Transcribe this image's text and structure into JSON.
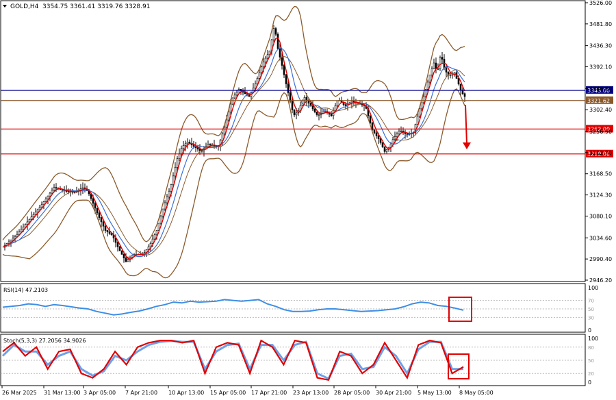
{
  "header": {
    "symbol": "GOLD,H4",
    "ohlc": "3354.75 3361.41 3319.76 3328.91"
  },
  "colors": {
    "candle": "#000000",
    "bollinger": "#8b5a2b",
    "ma_fast": "#e00000",
    "ma_slow": "#3b6fd8",
    "hline_blue": "#00008b",
    "hline_red": "#e00000",
    "hline_brown": "#8b5a2b",
    "rsi": "#3d8ee6",
    "stoch_main": "#e00000",
    "stoch_signal": "#6fa0e8",
    "annotation": "#e00000"
  },
  "chart_data": [
    {
      "type": "line",
      "name": "price",
      "ylim": [
        2946.2,
        3526.0
      ],
      "yticks": [
        "3526.00",
        "3481.80",
        "3436.30",
        "3392.10",
        "3346.60",
        "3302.40",
        "3256.90",
        "3212.70",
        "3168.50",
        "3124.30",
        "3080.10",
        "3034.60",
        "2990.40",
        "2946.20"
      ],
      "xticks": [
        "26 Mar 2025",
        "31 Mar 13:00",
        "3 Apr 05:00",
        "7 Apr 21:00",
        "10 Apr 13:00",
        "15 Apr 05:00",
        "17 Apr 21:00",
        "23 Apr 13:00",
        "28 Apr 05:00",
        "30 Apr 21:00",
        "5 May 13:00",
        "8 May 05:00"
      ],
      "price_x": [
        0,
        20,
        40,
        55,
        75,
        90,
        105,
        118,
        125,
        140,
        150,
        160,
        170,
        180,
        190,
        205,
        215,
        225,
        235,
        245,
        255,
        262,
        270,
        280,
        290,
        300,
        315,
        325,
        335,
        345,
        360,
        370,
        380,
        390,
        397,
        402,
        408,
        415,
        425,
        432,
        440,
        450,
        460,
        470,
        480,
        490,
        500,
        510,
        520,
        530,
        540,
        550,
        558,
        565,
        570,
        580,
        590,
        600,
        608,
        615,
        620,
        625,
        630,
        635,
        640,
        645,
        650,
        655,
        660,
        665,
        670,
        675,
        677
      ],
      "price_y": [
        3015,
        3040,
        3075,
        3100,
        3140,
        3133,
        3130,
        3140,
        3130,
        3080,
        3050,
        3040,
        3010,
        2985,
        3000,
        3000,
        3020,
        3050,
        3100,
        3140,
        3200,
        3225,
        3235,
        3225,
        3215,
        3230,
        3225,
        3270,
        3325,
        3345,
        3330,
        3360,
        3400,
        3425,
        3480,
        3430,
        3395,
        3350,
        3290,
        3300,
        3330,
        3310,
        3290,
        3300,
        3290,
        3325,
        3310,
        3320,
        3315,
        3310,
        3260,
        3240,
        3215,
        3225,
        3240,
        3260,
        3250,
        3255,
        3300,
        3330,
        3355,
        3380,
        3400,
        3380,
        3420,
        3390,
        3375,
        3375,
        3380,
        3360,
        3340,
        3330,
        3329
      ],
      "annotations": [
        {
          "value": 3343.0,
          "label": "3343.00",
          "color": "hline_blue"
        },
        {
          "value": 3321.62,
          "label": "3321.62",
          "color": "hline_brown"
        },
        {
          "value": 3262.0,
          "label": "3262.00",
          "color": "hline_red"
        },
        {
          "value": 3210.0,
          "label": "3210.00",
          "color": "hline_red"
        }
      ]
    },
    {
      "type": "line",
      "name": "RSI(14)",
      "label": "RSI(14) 47.2103",
      "ylim": [
        0,
        100
      ],
      "levels": [
        "70",
        "50",
        "30"
      ],
      "axis_ticks": [
        "100",
        "0"
      ],
      "values": [
        54,
        56,
        58,
        62,
        60,
        56,
        60,
        58,
        55,
        52,
        50,
        44,
        40,
        36,
        38,
        42,
        45,
        50,
        56,
        60,
        66,
        64,
        68,
        66,
        67,
        68,
        72,
        70,
        68,
        70,
        72,
        62,
        56,
        48,
        44,
        44,
        45,
        48,
        50,
        50,
        48,
        46,
        44,
        45,
        46,
        48,
        50,
        55,
        62,
        66,
        64,
        58,
        56,
        52,
        47
      ]
    },
    {
      "type": "line",
      "name": "Stoch",
      "label": "Stoch(5,3,3) 27.2056 34.9026",
      "ylim": [
        0,
        100
      ],
      "levels": [
        "80",
        "50",
        "20"
      ],
      "axis_ticks": [
        "100",
        "0"
      ],
      "main": [
        70,
        90,
        60,
        80,
        30,
        70,
        75,
        20,
        10,
        30,
        70,
        40,
        80,
        90,
        95,
        95,
        90,
        95,
        20,
        80,
        90,
        85,
        20,
        95,
        80,
        40,
        95,
        90,
        10,
        5,
        70,
        60,
        20,
        40,
        90,
        50,
        10,
        85,
        95,
        90,
        20,
        35
      ],
      "signal": [
        60,
        85,
        70,
        70,
        40,
        60,
        70,
        30,
        15,
        25,
        60,
        50,
        70,
        85,
        92,
        94,
        92,
        92,
        30,
        70,
        85,
        88,
        30,
        85,
        85,
        50,
        85,
        92,
        20,
        8,
        60,
        65,
        30,
        35,
        80,
        60,
        20,
        75,
        92,
        92,
        30,
        30
      ]
    }
  ]
}
